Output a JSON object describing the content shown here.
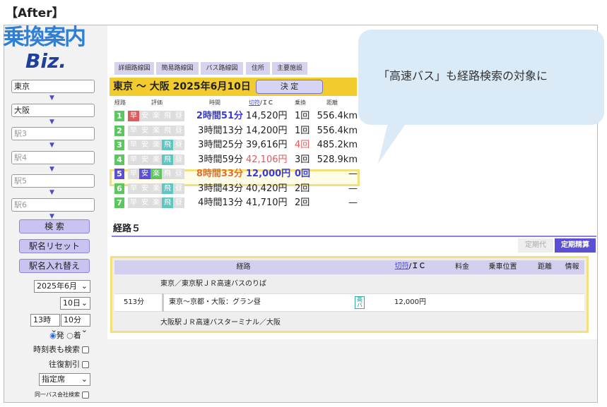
{
  "heading": "【After】",
  "logo": {
    "line1": "乗換案内",
    "line2": "Biz."
  },
  "sidebar": {
    "stations": [
      {
        "value": "東京",
        "placeholder": ""
      },
      {
        "value": "大阪",
        "placeholder": ""
      },
      {
        "value": "",
        "placeholder": "駅3"
      },
      {
        "value": "",
        "placeholder": "駅4"
      },
      {
        "value": "",
        "placeholder": "駅5"
      },
      {
        "value": "",
        "placeholder": "駅6"
      }
    ],
    "arrow": "▼",
    "search": "検 索",
    "reset": "駅名リセット",
    "swap": "駅名入れ替え",
    "month": "2025年6月",
    "day": "10日",
    "hour": "13時",
    "minute": "10分",
    "depart": "発",
    "arrive": "着",
    "timetable": "時刻表も検索",
    "roundtrip": "往復割引",
    "seat": "指定席",
    "samebus": "同一バス会社検索"
  },
  "tabs": [
    "詳細路線図",
    "簡易路線図",
    "バス路線図",
    "住所",
    "主要施設"
  ],
  "header": {
    "title": "東京 〜 大阪 2025年6月10日",
    "decide": "決 定"
  },
  "columns": {
    "route": "経路",
    "rating": "評価",
    "time": "時間",
    "ticket": "切符",
    "ic": "/ＩＣ",
    "transfer": "乗換",
    "distance": "距離"
  },
  "rating_labels": [
    "早",
    "安",
    "楽",
    "飛",
    "昼"
  ],
  "routes": [
    {
      "n": "1",
      "time": "2時間51分",
      "fare": "14,520円",
      "tr": "1回",
      "dist": "556.4km",
      "on": [
        0
      ]
    },
    {
      "n": "2",
      "time": "3時間13分",
      "fare": "14,200円",
      "tr": "1回",
      "dist": "556.4km",
      "on": []
    },
    {
      "n": "3",
      "time": "3時間25分",
      "fare": "39,616円",
      "tr": "4回",
      "dist": "485.2km",
      "on": [
        3
      ]
    },
    {
      "n": "4",
      "time": "3時間59分",
      "fare": "42,106円",
      "tr": "3回",
      "dist": "528.9km",
      "on": [
        3
      ]
    },
    {
      "n": "5",
      "time": "8時間33分",
      "fare": "12,000円",
      "tr": "0回",
      "dist": "—",
      "on": [
        1,
        2
      ]
    },
    {
      "n": "6",
      "time": "3時間43分",
      "fare": "40,420円",
      "tr": "2回",
      "dist": "—",
      "on": [
        3
      ]
    },
    {
      "n": "7",
      "time": "4時間13分",
      "fare": "41,710円",
      "tr": "2回",
      "dist": "—",
      "on": [
        3
      ]
    }
  ],
  "detail": {
    "title": "経路５",
    "teiki": "定期代",
    "seisan": "定期精算",
    "headers": {
      "route": "経路",
      "ticket": "切符",
      "ic": "/ＩＣ",
      "fee": "料金",
      "pos": "乗車位置",
      "dist": "距離",
      "info": "情報"
    },
    "from": "東京／東京駅ＪＲ高速バスのりば",
    "duration": "513分",
    "line": "東京〜京都・大阪：グラン昼",
    "badge": "高バ",
    "fare": "12,000円",
    "to": "大阪駅ＪＲ高速バスターミナル／大阪"
  },
  "callout": "「高速バス」も経路検索の対象に",
  "colors": {
    "accent": "#5b4fd8",
    "header": "#f2cc2e",
    "highlight": "#f4df7a",
    "callout": "#dbeaf7"
  }
}
